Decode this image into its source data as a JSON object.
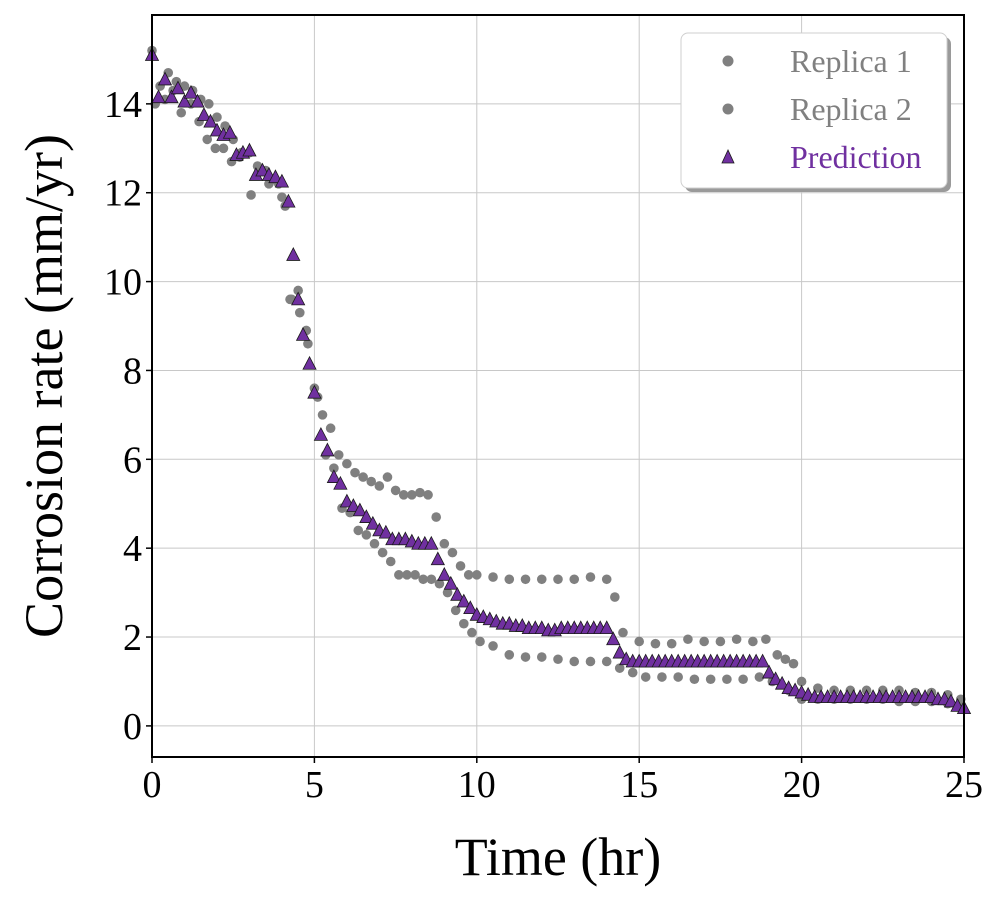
{
  "chart_data": {
    "type": "scatter",
    "xlabel": "Time (hr)",
    "ylabel": "Corrosion rate (mm/yr)",
    "xlim": [
      0,
      25
    ],
    "ylim": [
      -0.7,
      16
    ],
    "xticks": [
      "0",
      "5",
      "10",
      "15",
      "20",
      "25"
    ],
    "yticks": [
      "0",
      "2",
      "4",
      "6",
      "8",
      "10",
      "12",
      "14"
    ],
    "grid": true,
    "legend_position": "top-right",
    "series": [
      {
        "name": "Replica 1",
        "marker": "circle",
        "color": "#808080",
        "x": [
          0,
          0.25,
          0.5,
          0.75,
          1,
          1.25,
          1.5,
          1.75,
          2,
          2.25,
          2.5,
          2.75,
          3,
          3.25,
          3.5,
          3.75,
          4,
          4.25,
          4.5,
          4.75,
          5,
          5.25,
          5.5,
          5.75,
          6,
          6.25,
          6.5,
          6.75,
          7,
          7.25,
          7.5,
          7.75,
          8,
          8.25,
          8.5,
          8.75,
          9,
          9.25,
          9.5,
          9.75,
          10,
          10.5,
          11,
          11.5,
          12,
          12.5,
          13,
          13.5,
          14,
          14.25,
          14.5,
          15,
          15.5,
          16,
          16.5,
          17,
          17.5,
          18,
          18.5,
          18.9,
          19.25,
          19.5,
          19.75,
          20,
          20.5,
          21,
          21.5,
          22,
          22.5,
          23,
          23.5,
          24,
          24.5,
          24.9
        ],
        "y": [
          15.2,
          14.4,
          14.7,
          14.5,
          14.4,
          14.3,
          14.1,
          14.0,
          13.7,
          13.5,
          13.2,
          12.9,
          12.9,
          12.6,
          12.5,
          12.3,
          11.9,
          9.6,
          9.8,
          8.9,
          7.6,
          7.0,
          6.7,
          6.1,
          5.9,
          5.7,
          5.6,
          5.5,
          5.4,
          5.6,
          5.3,
          5.2,
          5.2,
          5.25,
          5.2,
          4.7,
          4.1,
          3.9,
          3.6,
          3.4,
          3.4,
          3.35,
          3.3,
          3.3,
          3.3,
          3.3,
          3.3,
          3.35,
          3.3,
          2.9,
          2.1,
          1.9,
          1.85,
          1.85,
          1.95,
          1.9,
          1.9,
          1.95,
          1.9,
          1.95,
          1.6,
          1.5,
          1.4,
          1.0,
          0.85,
          0.8,
          0.8,
          0.8,
          0.8,
          0.8,
          0.75,
          0.75,
          0.7,
          0.6
        ]
      },
      {
        "name": "Replica 2",
        "marker": "circle",
        "color": "#808080",
        "x": [
          0.1,
          0.4,
          0.65,
          0.9,
          1.2,
          1.45,
          1.7,
          1.95,
          2.2,
          2.45,
          2.7,
          3.05,
          3.3,
          3.6,
          3.9,
          4.1,
          4.3,
          4.55,
          4.8,
          5.1,
          5.35,
          5.6,
          5.85,
          6.1,
          6.35,
          6.6,
          6.85,
          7.1,
          7.35,
          7.6,
          7.85,
          8.1,
          8.35,
          8.6,
          8.85,
          9.1,
          9.35,
          9.6,
          9.85,
          10.1,
          10.5,
          11,
          11.5,
          12,
          12.5,
          13,
          13.5,
          14,
          14.4,
          14.8,
          15.2,
          15.7,
          16.2,
          16.7,
          17.2,
          17.7,
          18.2,
          18.7,
          19.1,
          19.6,
          20,
          20.5,
          21,
          21.5,
          22,
          22.5,
          23,
          23.5,
          24,
          24.5,
          24.95
        ],
        "y": [
          14.0,
          14.1,
          14.3,
          13.8,
          14.0,
          13.6,
          13.2,
          13.0,
          13.0,
          12.7,
          12.8,
          11.95,
          12.5,
          12.2,
          12.2,
          11.7,
          9.6,
          9.3,
          8.6,
          7.4,
          6.1,
          5.8,
          4.9,
          4.8,
          4.4,
          4.3,
          4.1,
          3.9,
          3.7,
          3.4,
          3.4,
          3.4,
          3.3,
          3.3,
          3.2,
          3.0,
          2.6,
          2.3,
          2.1,
          1.9,
          1.8,
          1.6,
          1.55,
          1.55,
          1.5,
          1.45,
          1.45,
          1.45,
          1.3,
          1.2,
          1.1,
          1.1,
          1.1,
          1.05,
          1.05,
          1.05,
          1.05,
          1.1,
          1.0,
          0.8,
          0.6,
          0.6,
          0.6,
          0.6,
          0.6,
          0.6,
          0.55,
          0.55,
          0.55,
          0.5,
          0.4
        ]
      },
      {
        "name": "Prediction",
        "marker": "triangle",
        "color": "#7030a0",
        "x": [
          0,
          0.2,
          0.4,
          0.6,
          0.8,
          1.0,
          1.2,
          1.4,
          1.6,
          1.8,
          2.0,
          2.2,
          2.4,
          2.6,
          2.8,
          3.0,
          3.2,
          3.4,
          3.6,
          3.8,
          4.0,
          4.2,
          4.35,
          4.5,
          4.65,
          4.85,
          5.0,
          5.2,
          5.4,
          5.6,
          5.8,
          6.0,
          6.2,
          6.4,
          6.6,
          6.8,
          7.0,
          7.2,
          7.4,
          7.6,
          7.8,
          8.0,
          8.2,
          8.4,
          8.6,
          8.8,
          9.0,
          9.2,
          9.4,
          9.6,
          9.8,
          10.0,
          10.2,
          10.4,
          10.6,
          10.8,
          11.0,
          11.2,
          11.4,
          11.6,
          11.8,
          12.0,
          12.2,
          12.4,
          12.6,
          12.8,
          13.0,
          13.2,
          13.4,
          13.6,
          13.8,
          14.0,
          14.2,
          14.4,
          14.6,
          14.8,
          15.0,
          15.2,
          15.4,
          15.6,
          15.8,
          16.0,
          16.2,
          16.4,
          16.6,
          16.8,
          17.0,
          17.2,
          17.4,
          17.6,
          17.8,
          18.0,
          18.2,
          18.4,
          18.6,
          18.8,
          19.0,
          19.2,
          19.4,
          19.6,
          19.8,
          20.0,
          20.2,
          20.4,
          20.6,
          20.8,
          21.0,
          21.2,
          21.4,
          21.6,
          21.8,
          22.0,
          22.2,
          22.4,
          22.6,
          22.8,
          23.0,
          23.2,
          23.4,
          23.6,
          23.8,
          24.0,
          24.2,
          24.4,
          24.6,
          24.8,
          25.0
        ],
        "y": [
          15.1,
          14.15,
          14.55,
          14.15,
          14.35,
          14.05,
          14.25,
          14.05,
          13.75,
          13.6,
          13.4,
          13.3,
          13.35,
          12.85,
          12.9,
          12.95,
          12.4,
          12.5,
          12.4,
          12.35,
          12.25,
          11.8,
          10.6,
          9.6,
          8.8,
          8.15,
          7.5,
          6.55,
          6.2,
          5.6,
          5.45,
          5.05,
          4.95,
          4.85,
          4.7,
          4.55,
          4.4,
          4.35,
          4.2,
          4.2,
          4.2,
          4.15,
          4.1,
          4.1,
          4.1,
          3.75,
          3.4,
          3.2,
          2.95,
          2.8,
          2.65,
          2.5,
          2.45,
          2.4,
          2.35,
          2.3,
          2.3,
          2.25,
          2.25,
          2.2,
          2.2,
          2.2,
          2.15,
          2.15,
          2.2,
          2.2,
          2.2,
          2.2,
          2.2,
          2.2,
          2.2,
          2.2,
          1.95,
          1.65,
          1.5,
          1.45,
          1.45,
          1.45,
          1.45,
          1.45,
          1.45,
          1.45,
          1.45,
          1.45,
          1.45,
          1.45,
          1.45,
          1.45,
          1.45,
          1.45,
          1.45,
          1.45,
          1.45,
          1.45,
          1.45,
          1.45,
          1.2,
          1.05,
          0.95,
          0.85,
          0.8,
          0.75,
          0.7,
          0.65,
          0.65,
          0.65,
          0.65,
          0.65,
          0.65,
          0.65,
          0.65,
          0.65,
          0.65,
          0.65,
          0.65,
          0.65,
          0.65,
          0.65,
          0.65,
          0.65,
          0.65,
          0.65,
          0.6,
          0.6,
          0.55,
          0.45,
          0.4
        ]
      }
    ]
  }
}
